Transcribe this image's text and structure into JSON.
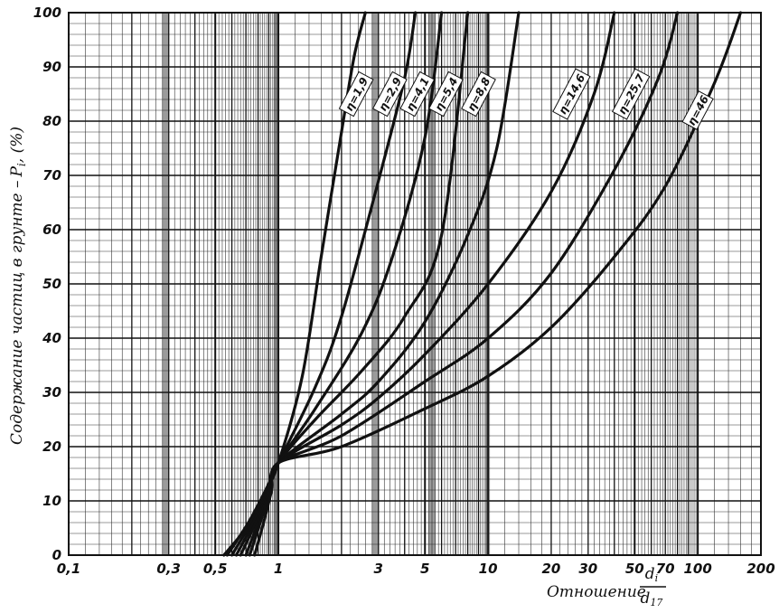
{
  "chart_data": {
    "type": "line",
    "title": "",
    "xlabel": "Отношение",
    "xlabel_fraction": {
      "numerator": "d",
      "numerator_sub": "i",
      "denominator": "d",
      "denominator_sub": "17"
    },
    "ylabel": "Содержание частиц в грунте –",
    "ylabel_symbol": "P",
    "ylabel_symbol_sub": "i",
    "ylabel_unit": ", (%)",
    "x_scale": "log",
    "xlim": [
      0.1,
      200
    ],
    "ylim": [
      0,
      100
    ],
    "x_ticks": [
      {
        "value": 0.1,
        "label": "0,1"
      },
      {
        "value": 0.3,
        "label": "0,3"
      },
      {
        "value": 0.5,
        "label": "0,5"
      },
      {
        "value": 1,
        "label": "1"
      },
      {
        "value": 3,
        "label": "3"
      },
      {
        "value": 5,
        "label": "5"
      },
      {
        "value": 10,
        "label": "10"
      },
      {
        "value": 20,
        "label": "20"
      },
      {
        "value": 30,
        "label": "30"
      },
      {
        "value": 50,
        "label": "50"
      },
      {
        "value": 70,
        "label": "70"
      },
      {
        "value": 100,
        "label": "100"
      },
      {
        "value": 200,
        "label": "200"
      }
    ],
    "y_ticks": [
      {
        "value": 0,
        "label": "0"
      },
      {
        "value": 10,
        "label": "10"
      },
      {
        "value": 20,
        "label": "20"
      },
      {
        "value": 30,
        "label": "30"
      },
      {
        "value": 40,
        "label": "40"
      },
      {
        "value": 50,
        "label": "50"
      },
      {
        "value": 60,
        "label": "60"
      },
      {
        "value": 70,
        "label": "70"
      },
      {
        "value": 80,
        "label": "80"
      },
      {
        "value": 90,
        "label": "90"
      },
      {
        "value": 100,
        "label": "100"
      }
    ],
    "grid": true,
    "line_color": "#111111",
    "series": [
      {
        "name": "η=1,9",
        "points": [
          [
            0.55,
            0
          ],
          [
            0.7,
            5
          ],
          [
            0.85,
            11
          ],
          [
            1,
            17
          ],
          [
            1.3,
            33
          ],
          [
            1.6,
            55
          ],
          [
            2,
            78
          ],
          [
            2.3,
            92
          ],
          [
            2.6,
            100
          ]
        ],
        "label_at": [
          2.35,
          85
        ]
      },
      {
        "name": "η=2,9",
        "points": [
          [
            0.57,
            0
          ],
          [
            0.72,
            6
          ],
          [
            0.87,
            12
          ],
          [
            1,
            17
          ],
          [
            1.5,
            31
          ],
          [
            2,
            44
          ],
          [
            3,
            69
          ],
          [
            4,
            88
          ],
          [
            4.5,
            100
          ]
        ],
        "label_at": [
          3.4,
          85
        ]
      },
      {
        "name": "η=4,1",
        "points": [
          [
            0.6,
            0
          ],
          [
            0.74,
            6
          ],
          [
            0.88,
            12
          ],
          [
            1,
            17
          ],
          [
            1.5,
            27
          ],
          [
            2.5,
            41
          ],
          [
            3.5,
            55
          ],
          [
            5,
            77
          ],
          [
            6,
            100
          ]
        ],
        "label_at": [
          4.6,
          85
        ]
      },
      {
        "name": "η=5,4",
        "points": [
          [
            0.63,
            0
          ],
          [
            0.76,
            6
          ],
          [
            0.89,
            12
          ],
          [
            1,
            17
          ],
          [
            1.5,
            25
          ],
          [
            2.5,
            34
          ],
          [
            4,
            44
          ],
          [
            6,
            59
          ],
          [
            8,
            100
          ]
        ],
        "label_at": [
          6.3,
          85
        ]
      },
      {
        "name": "η=8,8",
        "points": [
          [
            0.66,
            0
          ],
          [
            0.78,
            6
          ],
          [
            0.9,
            12
          ],
          [
            1,
            17
          ],
          [
            2,
            26
          ],
          [
            3,
            32
          ],
          [
            5,
            43
          ],
          [
            8,
            59
          ],
          [
            11,
            75
          ],
          [
            14,
            100
          ]
        ],
        "label_at": [
          9,
          85
        ]
      },
      {
        "name": "η=14,6",
        "points": [
          [
            0.7,
            0
          ],
          [
            0.8,
            6
          ],
          [
            0.91,
            12
          ],
          [
            1,
            17
          ],
          [
            2,
            24
          ],
          [
            3,
            29
          ],
          [
            5,
            37
          ],
          [
            10,
            50
          ],
          [
            20,
            67
          ],
          [
            32,
            85
          ],
          [
            40,
            100
          ]
        ],
        "label_at": [
          25,
          85
        ]
      },
      {
        "name": "η=25,7",
        "points": [
          [
            0.73,
            0
          ],
          [
            0.82,
            6
          ],
          [
            0.92,
            12
          ],
          [
            1,
            17
          ],
          [
            2,
            22
          ],
          [
            5,
            32
          ],
          [
            10,
            40
          ],
          [
            20,
            52
          ],
          [
            40,
            71
          ],
          [
            65,
            88
          ],
          [
            80,
            100
          ]
        ],
        "label_at": [
          48,
          85
        ]
      },
      {
        "name": "η=46",
        "points": [
          [
            0.77,
            0
          ],
          [
            0.85,
            6
          ],
          [
            0.93,
            12
          ],
          [
            1,
            17
          ],
          [
            2,
            20
          ],
          [
            5,
            27
          ],
          [
            10,
            33
          ],
          [
            20,
            42
          ],
          [
            40,
            55
          ],
          [
            70,
            68
          ],
          [
            120,
            87
          ],
          [
            160,
            100
          ]
        ],
        "label_at": [
          100,
          82
        ]
      }
    ]
  }
}
